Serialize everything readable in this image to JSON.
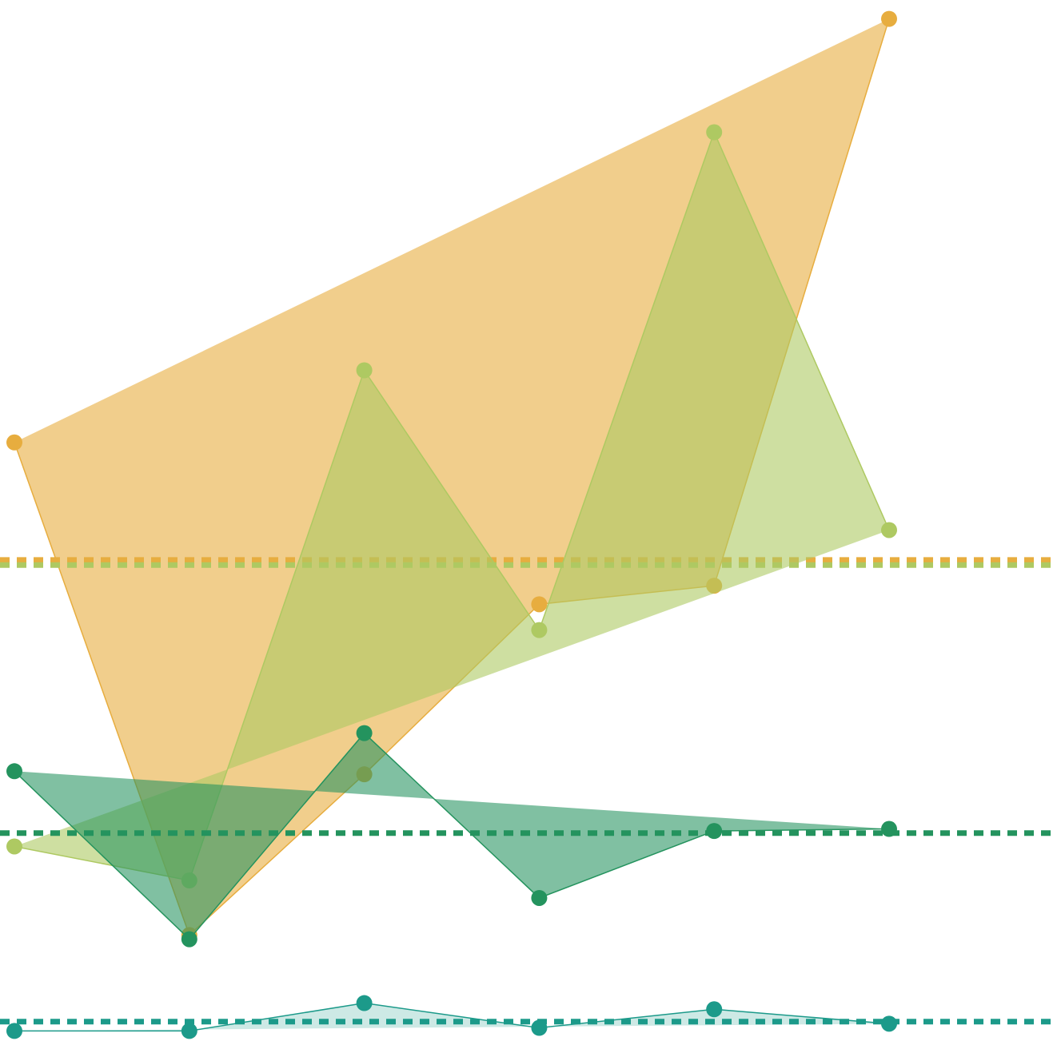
{
  "chart_data": {
    "type": "area",
    "title": "",
    "xlabel": "",
    "ylabel": "",
    "x": [
      0,
      1,
      2,
      3,
      4,
      5
    ],
    "ylim": [
      0,
      100
    ],
    "grid": false,
    "legend": "none",
    "series": [
      {
        "color": "#e7ad3f",
        "fill_opacity": 0.6,
        "values": [
          58.0,
          10.2,
          25.8,
          42.3,
          44.1,
          99.1
        ],
        "mean": 46.6
      },
      {
        "color": "#aec962",
        "fill_opacity": 0.6,
        "values": [
          18.8,
          15.5,
          65.0,
          39.8,
          88.1,
          49.5
        ],
        "mean": 46.1
      },
      {
        "color": "#24935e",
        "fill_opacity": 0.58,
        "values": [
          26.1,
          9.8,
          29.8,
          13.8,
          20.3,
          20.5
        ],
        "mean": 20.1
      },
      {
        "color": "#1c9a8a",
        "fill_opacity": 0.22,
        "values": [
          0.9,
          0.9,
          3.6,
          1.2,
          3.0,
          1.6
        ],
        "mean": 1.8
      }
    ]
  }
}
